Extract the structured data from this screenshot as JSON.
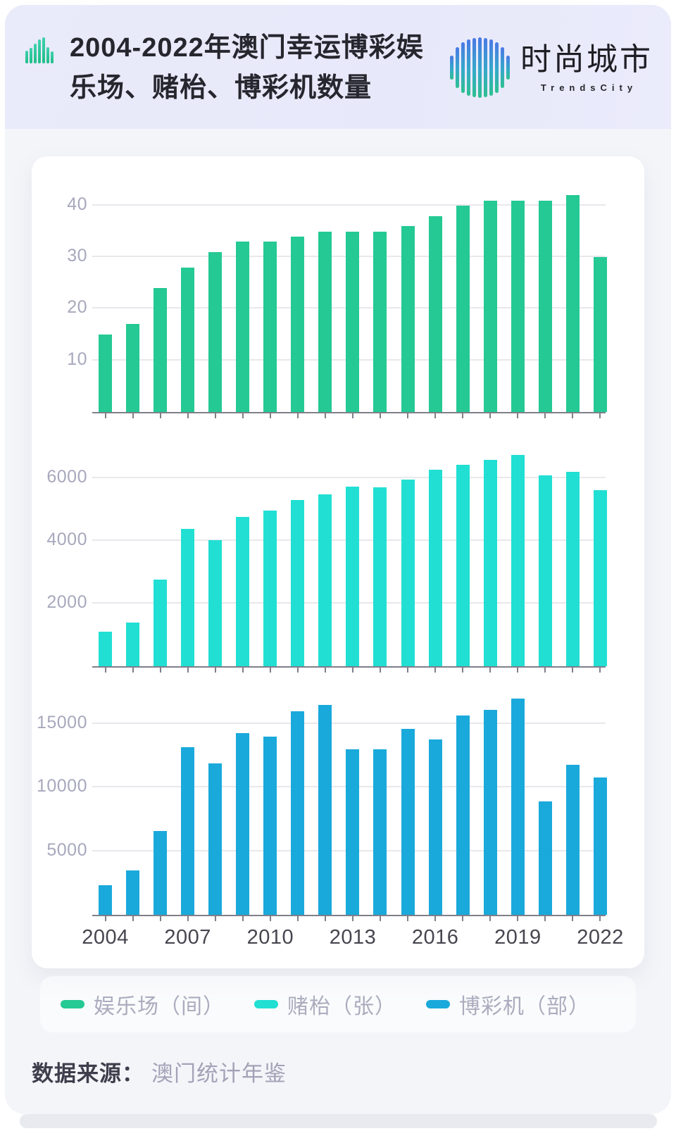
{
  "header": {
    "title_line1": "2004-2022年澳门幸运博彩娱",
    "title_line2": "乐场、赌枱、博彩机数量",
    "logo_cn": "时尚城市",
    "logo_en": "TrendsCity"
  },
  "colors": {
    "accent_green": "#24C993",
    "accent_cyan": "#21DFD3",
    "accent_blue": "#1AA9DB",
    "header_bg": "#E8EAFA",
    "logo_gradient_top": "#4A79E6",
    "logo_gradient_bottom": "#2EC08F"
  },
  "chart_data": {
    "type": "bar",
    "title": "2004-2022年澳门幸运博彩娱乐场、赌枱、博彩机数量",
    "categories": [
      "2004",
      "2005",
      "2006",
      "2007",
      "2008",
      "2009",
      "2010",
      "2011",
      "2012",
      "2013",
      "2014",
      "2015",
      "2016",
      "2017",
      "2018",
      "2019",
      "2020",
      "2021",
      "2022"
    ],
    "x_ticks": [
      "2004",
      "2007",
      "2010",
      "2013",
      "2016",
      "2019",
      "2022"
    ],
    "x_tick_indices": [
      0,
      3,
      6,
      9,
      12,
      15,
      18
    ],
    "grid": true,
    "legend_position": "bottom",
    "series": [
      {
        "name": "娱乐场（间）",
        "color": "#24C993",
        "ymax": 46,
        "y_ticks": [
          10,
          20,
          30,
          40
        ],
        "values": [
          15,
          17,
          24,
          28,
          31,
          33,
          33,
          34,
          35,
          35,
          35,
          36,
          38,
          40,
          41,
          41,
          41,
          42,
          30
        ]
      },
      {
        "name": "赌枱（张）",
        "color": "#21DFD3",
        "ymax": 7100,
        "y_ticks": [
          2000,
          4000,
          6000
        ],
        "values": [
          1100,
          1400,
          2760,
          4380,
          4020,
          4770,
          4960,
          5300,
          5490,
          5740,
          5700,
          5950,
          6280,
          6430,
          6590,
          6740,
          6090,
          6210,
          5620
        ]
      },
      {
        "name": "博彩机（部）",
        "color": "#1AA9DB",
        "ymax": 17500,
        "y_ticks": [
          5000,
          10000,
          15000
        ],
        "values": [
          2300,
          3500,
          6600,
          13200,
          11900,
          14300,
          14000,
          16000,
          16500,
          13000,
          13000,
          14600,
          13800,
          15700,
          16100,
          17000,
          8900,
          11800,
          10800
        ]
      }
    ]
  },
  "footer": {
    "source_label": "数据来源：",
    "source_value": "澳门统计年鉴"
  }
}
